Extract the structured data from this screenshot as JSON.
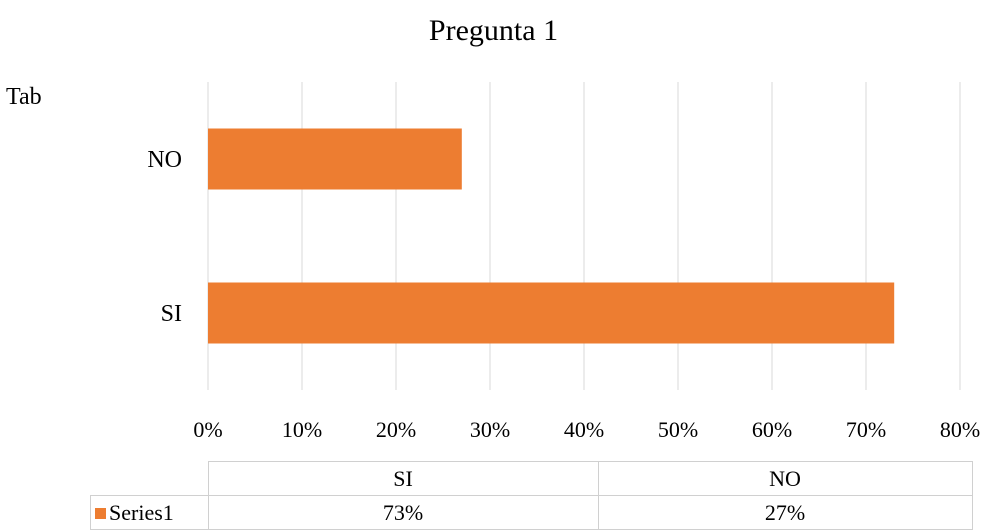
{
  "side_text": "Tab",
  "chart_data": {
    "type": "bar",
    "orientation": "horizontal",
    "title": "Pregunta 1",
    "categories": [
      "SI",
      "NO"
    ],
    "series": [
      {
        "name": "Series1",
        "values": [
          73,
          27
        ],
        "color": "#ED7D31"
      }
    ],
    "xlim": [
      0,
      80
    ],
    "x_ticks": [
      "0%",
      "10%",
      "20%",
      "30%",
      "40%",
      "50%",
      "60%",
      "70%",
      "80%"
    ],
    "grid": true,
    "legend": "data-table",
    "data_table": {
      "headers": [
        "SI",
        "NO"
      ],
      "rows": [
        {
          "series": "Series1",
          "values": [
            "73%",
            "27%"
          ]
        }
      ]
    }
  }
}
